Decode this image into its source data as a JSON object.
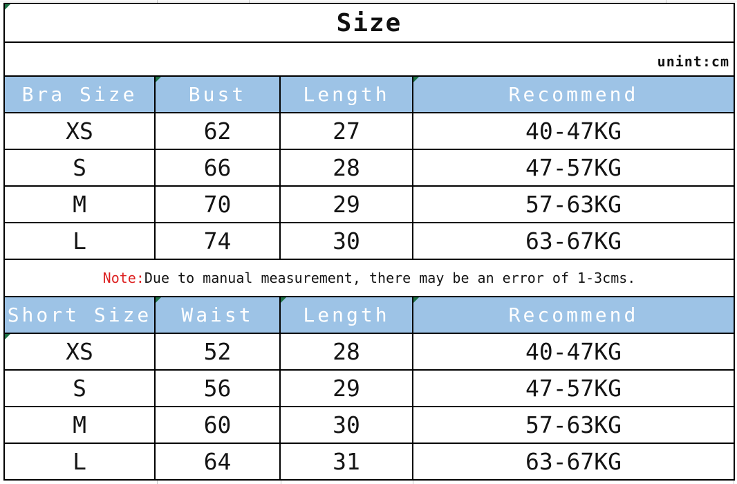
{
  "sheet_title": "Size",
  "unit_label": "unint:cm",
  "note": {
    "prefix": "Note:",
    "body": "Due to manual measurement, there may be an error of 1-3cms."
  },
  "colors": {
    "header_bg": "#9dc3e6",
    "header_text": "#ffffff",
    "border": "#000000",
    "note_red": "#dd2222",
    "excel_triangle_green": "#1e7145",
    "gridline_gray": "#c9c9c9"
  },
  "chart_data": [
    {
      "type": "table",
      "name": "bra-size-table",
      "headers": [
        "Bra Size",
        "Bust",
        "Length",
        "Recommend"
      ],
      "rows": [
        [
          "XS",
          "62",
          "27",
          "40-47KG"
        ],
        [
          "S",
          "66",
          "28",
          "47-57KG"
        ],
        [
          "M",
          "70",
          "29",
          "57-63KG"
        ],
        [
          "L",
          "74",
          "30",
          "63-67KG"
        ]
      ]
    },
    {
      "type": "table",
      "name": "short-size-table",
      "headers": [
        "Short Size",
        "Waist",
        "Length",
        "Recommend"
      ],
      "rows": [
        [
          "XS",
          "52",
          "28",
          "40-47KG"
        ],
        [
          "S",
          "56",
          "29",
          "47-57KG"
        ],
        [
          "M",
          "60",
          "30",
          "57-63KG"
        ],
        [
          "L",
          "64",
          "31",
          "63-67KG"
        ]
      ]
    }
  ]
}
